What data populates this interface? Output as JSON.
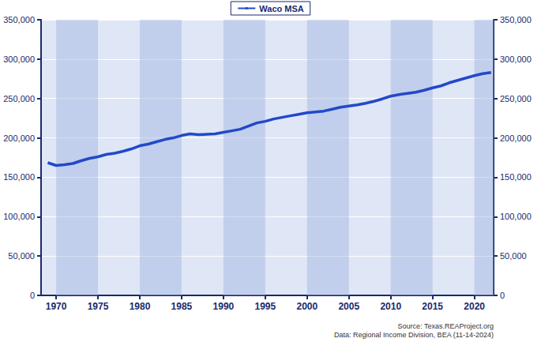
{
  "chart_data": {
    "type": "line",
    "series": [
      {
        "name": "Waco MSA",
        "color": "#2249c9",
        "values": [
          168500,
          165000,
          166000,
          167500,
          171000,
          174000,
          176000,
          179000,
          180500,
          183000,
          186000,
          190000,
          192000,
          195000,
          198000,
          200000,
          203000,
          205000,
          204000,
          204500,
          205000,
          207000,
          209000,
          211000,
          215000,
          219000,
          221000,
          224000,
          226000,
          228000,
          230000,
          232000,
          233000,
          234000,
          236500,
          239000,
          240500,
          242000,
          244000,
          246500,
          249500,
          253000,
          255000,
          256500,
          258000,
          260500,
          263500,
          266000,
          270000,
          273000,
          276000,
          279000,
          281500,
          283000
        ]
      }
    ],
    "x": [
      1969,
      1970,
      1971,
      1972,
      1973,
      1974,
      1975,
      1976,
      1977,
      1978,
      1979,
      1980,
      1981,
      1982,
      1983,
      1984,
      1985,
      1986,
      1987,
      1988,
      1989,
      1990,
      1991,
      1992,
      1993,
      1994,
      1995,
      1996,
      1997,
      1998,
      1999,
      2000,
      2001,
      2002,
      2003,
      2004,
      2005,
      2006,
      2007,
      2008,
      2009,
      2010,
      2011,
      2012,
      2013,
      2014,
      2015,
      2016,
      2017,
      2018,
      2019,
      2020,
      2021,
      2022
    ],
    "xlim": [
      1968.2,
      2022.3
    ],
    "xticks": [
      1970,
      1975,
      1980,
      1985,
      1990,
      1995,
      2000,
      2005,
      2010,
      2015,
      2020
    ],
    "ylim": [
      0,
      350000
    ],
    "yticks": [
      0,
      {
        "value": 50000,
        "label": "50,000"
      },
      {
        "value": 100000,
        "label": "100,000"
      },
      {
        "value": 150000,
        "label": "150,000"
      },
      {
        "value": 200000,
        "label": "200,000"
      },
      {
        "value": 250000,
        "label": "250,000"
      },
      {
        "value": 300000,
        "label": "300,000"
      },
      {
        "value": 350000,
        "label": "350,000"
      }
    ],
    "y2lim": [
      0,
      350000
    ],
    "y2ticks": [
      0,
      {
        "value": 50000,
        "label": "50,000"
      },
      {
        "value": 100000,
        "label": "100,000"
      },
      {
        "value": 150000,
        "label": "150,000"
      },
      {
        "value": 200000,
        "label": "200,000"
      },
      {
        "value": 250000,
        "label": "250,000"
      },
      {
        "value": 300000,
        "label": "300,000"
      },
      {
        "value": 350000,
        "label": "350,000"
      }
    ],
    "grid": true,
    "legend": "top",
    "annotations": [
      "Source: Texas.REAProject.org",
      "Data: Regional Income Division, BEA (11-14-2024)"
    ]
  }
}
